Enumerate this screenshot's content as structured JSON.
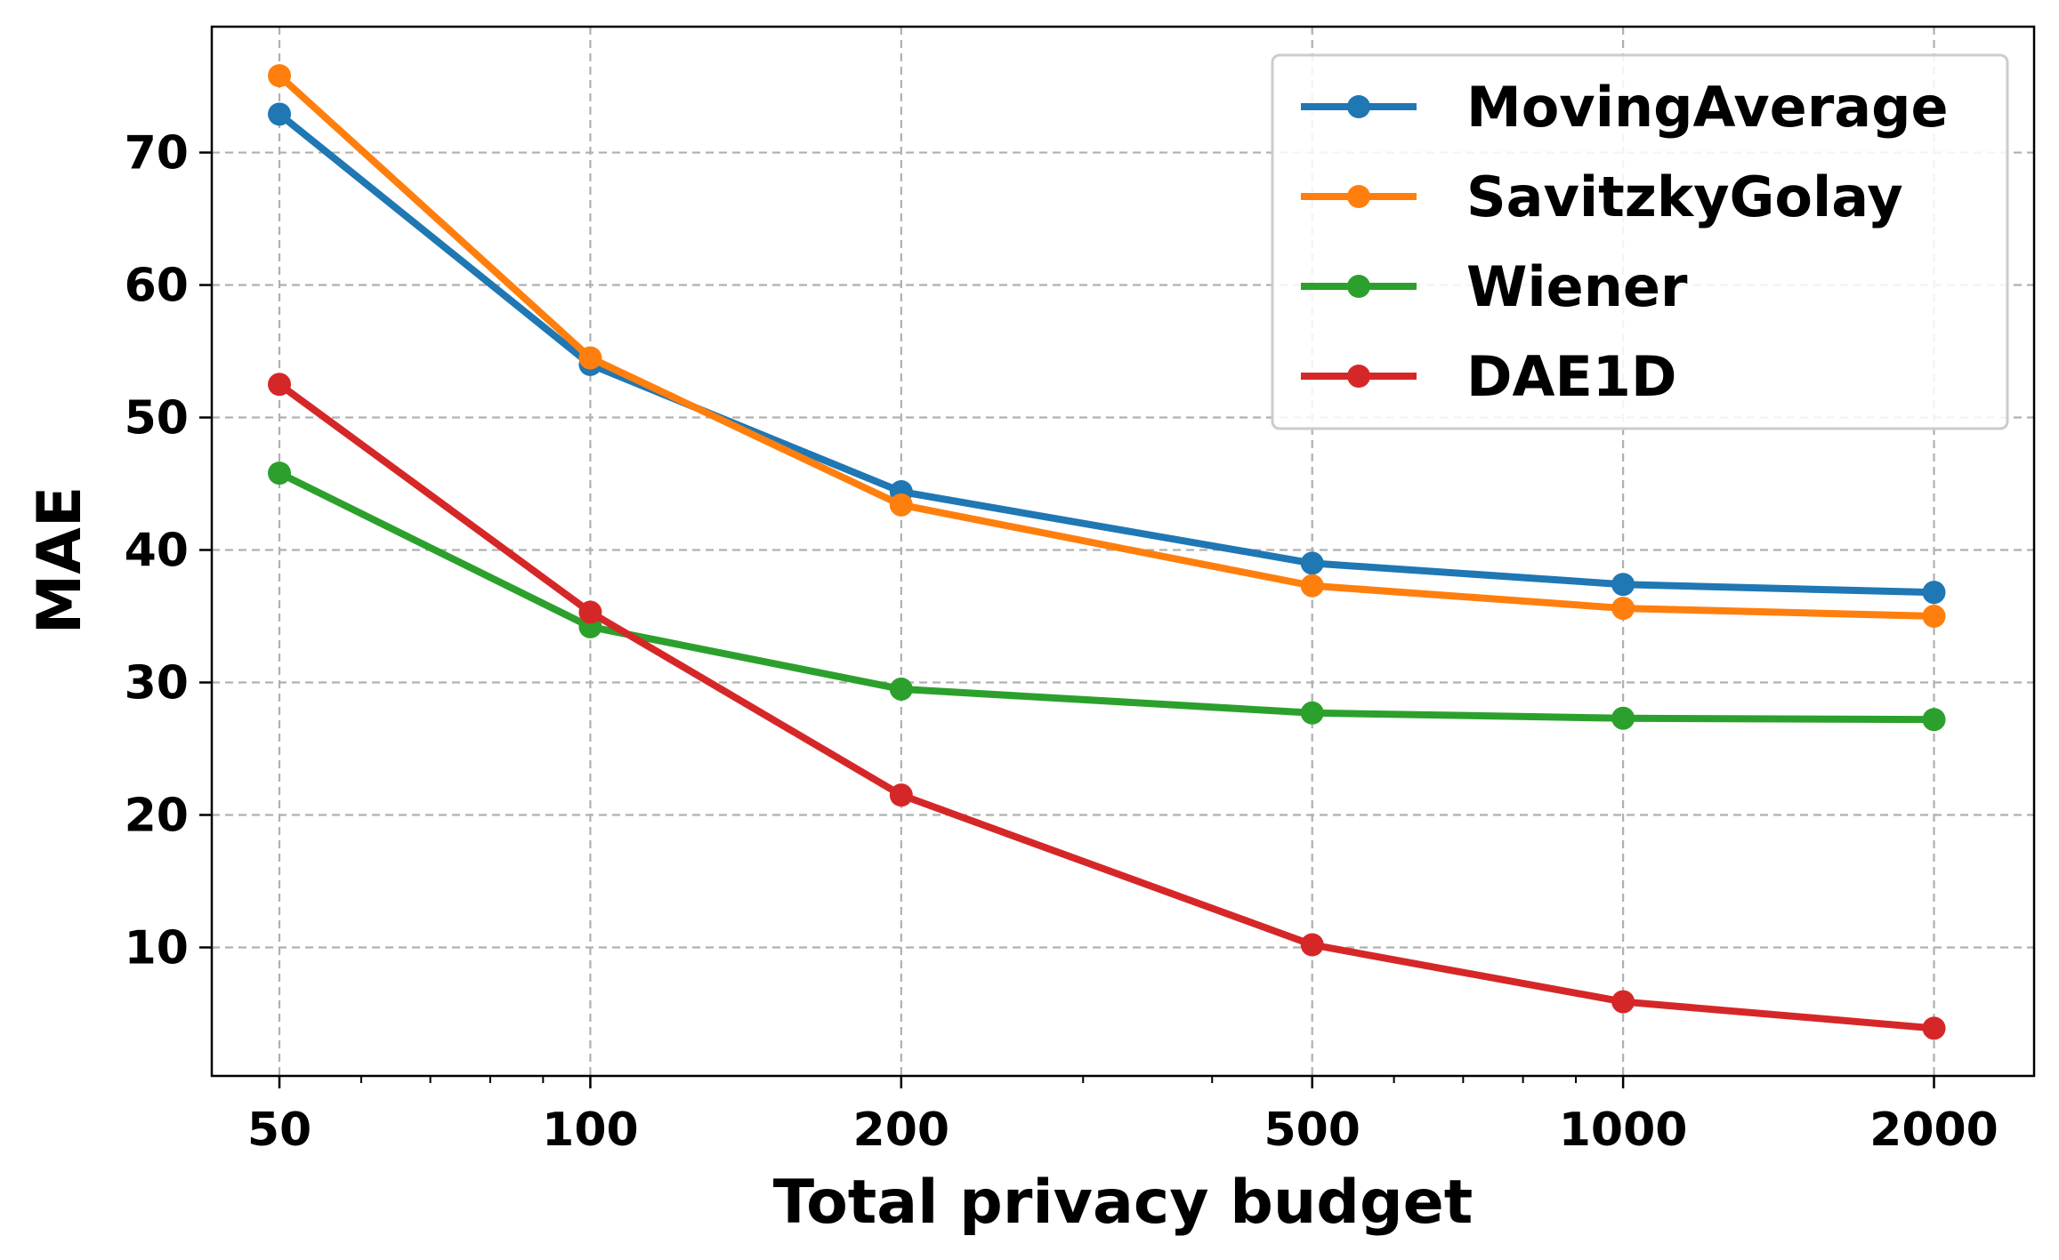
{
  "chart_data": {
    "type": "line",
    "title": "",
    "xlabel": "Total privacy budget",
    "ylabel": "MAE",
    "x_scale": "log",
    "x": [
      50,
      100,
      200,
      500,
      1000,
      2000
    ],
    "x_tick_labels": [
      "50",
      "100",
      "200",
      "500",
      "1000",
      "2000"
    ],
    "xlim": [
      43,
      2500
    ],
    "ylim": [
      0.3,
      79.5
    ],
    "y_ticks": [
      10,
      20,
      30,
      40,
      50,
      60,
      70
    ],
    "y_tick_labels": [
      "10",
      "20",
      "30",
      "40",
      "50",
      "60",
      "70"
    ],
    "grid": true,
    "legend_position": "top-right",
    "series": [
      {
        "name": "MovingAverage",
        "color": "#1f77b4",
        "values": [
          72.9,
          54.0,
          44.4,
          39.0,
          37.4,
          36.8
        ]
      },
      {
        "name": "SavitzkyGolay",
        "color": "#ff7f0e",
        "values": [
          75.8,
          54.5,
          43.4,
          37.3,
          35.6,
          35.0
        ]
      },
      {
        "name": "Wiener",
        "color": "#2ca02c",
        "values": [
          45.8,
          34.2,
          29.5,
          27.7,
          27.3,
          27.2
        ]
      },
      {
        "name": "DAE1D",
        "color": "#d62728",
        "values": [
          52.5,
          35.3,
          21.5,
          10.2,
          5.9,
          3.9
        ]
      }
    ]
  }
}
